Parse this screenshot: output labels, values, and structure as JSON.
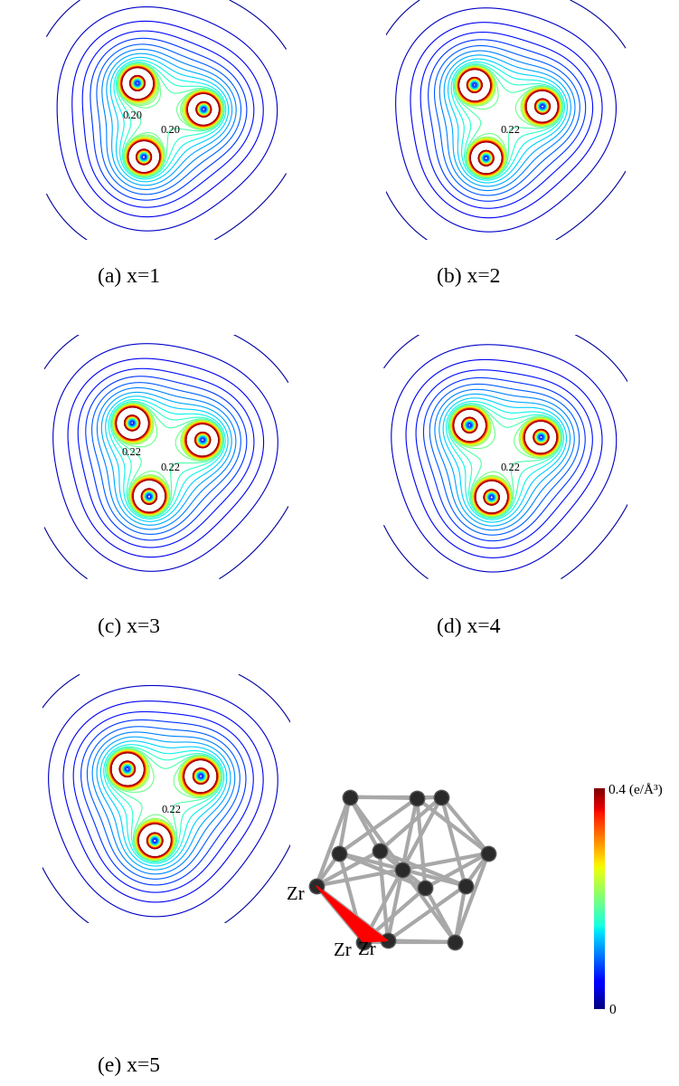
{
  "chart_data": [
    {
      "type": "contour",
      "title": "(a) x=1",
      "annotations": [
        {
          "value": 0.2,
          "label": "0.20"
        },
        {
          "value": 0.2,
          "label": "0.20"
        }
      ]
    },
    {
      "type": "contour",
      "title": "(b) x=2",
      "annotations": [
        {
          "value": 0.22,
          "label": "0.22"
        }
      ]
    },
    {
      "type": "contour",
      "title": "(c) x=3",
      "annotations": [
        {
          "value": 0.22,
          "label": "0.22"
        },
        {
          "value": 0.22,
          "label": "0.22"
        }
      ]
    },
    {
      "type": "contour",
      "title": "(d) x=4",
      "annotations": [
        {
          "value": 0.22,
          "label": "0.22"
        }
      ]
    },
    {
      "type": "contour",
      "title": "(e) x=5",
      "annotations": [
        {
          "value": 0.22,
          "label": "0.22"
        }
      ]
    }
  ],
  "colorbar": {
    "range": [
      0,
      0.4
    ],
    "ticks": [
      0,
      {
        "value": 0.4,
        "label": "0.4 (e/Å³)"
      }
    ]
  },
  "structure": {
    "labels": [
      "Zr",
      "Zr",
      "Zr"
    ]
  }
}
